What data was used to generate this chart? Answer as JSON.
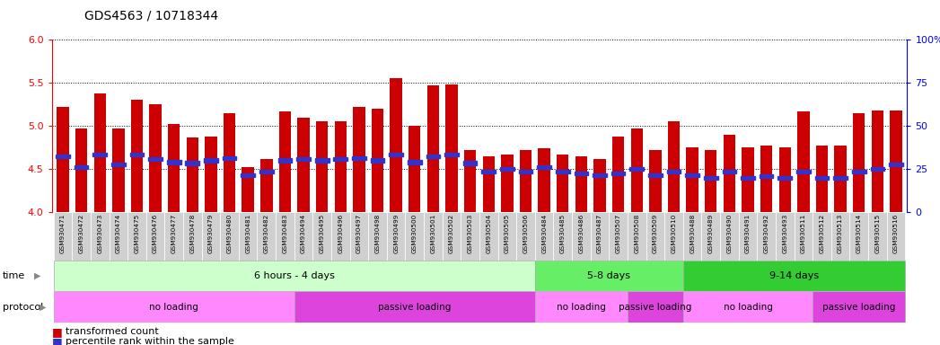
{
  "title": "GDS4563 / 10718344",
  "samples": [
    "GSM930471",
    "GSM930472",
    "GSM930473",
    "GSM930474",
    "GSM930475",
    "GSM930476",
    "GSM930477",
    "GSM930478",
    "GSM930479",
    "GSM930480",
    "GSM930481",
    "GSM930482",
    "GSM930483",
    "GSM930494",
    "GSM930495",
    "GSM930496",
    "GSM930497",
    "GSM930498",
    "GSM930499",
    "GSM930500",
    "GSM930501",
    "GSM930502",
    "GSM930503",
    "GSM930504",
    "GSM930505",
    "GSM930506",
    "GSM930484",
    "GSM930485",
    "GSM930486",
    "GSM930487",
    "GSM930507",
    "GSM930508",
    "GSM930509",
    "GSM930510",
    "GSM930488",
    "GSM930489",
    "GSM930490",
    "GSM930491",
    "GSM930492",
    "GSM930493",
    "GSM930511",
    "GSM930512",
    "GSM930513",
    "GSM930514",
    "GSM930515",
    "GSM930516"
  ],
  "bar_values": [
    5.22,
    4.97,
    5.38,
    4.97,
    5.3,
    5.25,
    5.02,
    4.87,
    4.88,
    5.15,
    4.52,
    4.62,
    5.17,
    5.1,
    5.05,
    5.05,
    5.22,
    5.2,
    5.55,
    5.0,
    5.47,
    5.48,
    4.72,
    4.65,
    4.67,
    4.72,
    4.74,
    4.67,
    4.65,
    4.62,
    4.88,
    4.97,
    4.72,
    5.05,
    4.75,
    4.72,
    4.9,
    4.75,
    4.77,
    4.75,
    5.17,
    4.77,
    4.77,
    5.15,
    5.18,
    5.18
  ],
  "percentile_values": [
    4.65,
    4.52,
    4.67,
    4.55,
    4.67,
    4.62,
    4.58,
    4.57,
    4.6,
    4.63,
    4.43,
    4.47,
    4.6,
    4.62,
    4.6,
    4.62,
    4.63,
    4.6,
    4.67,
    4.58,
    4.65,
    4.67,
    4.57,
    4.47,
    4.5,
    4.47,
    4.52,
    4.47,
    4.45,
    4.43,
    4.45,
    4.5,
    4.43,
    4.47,
    4.43,
    4.4,
    4.47,
    4.4,
    4.42,
    4.4,
    4.47,
    4.4,
    4.4,
    4.47,
    4.5,
    4.55
  ],
  "ylim_left": [
    4.0,
    6.0
  ],
  "yticks_left": [
    4.0,
    4.5,
    5.0,
    5.5,
    6.0
  ],
  "ylim_right": [
    0,
    100
  ],
  "yticks_right": [
    0,
    25,
    50,
    75,
    100
  ],
  "bar_color": "#cc0000",
  "marker_color": "#3333cc",
  "background_color": "#ffffff",
  "time_groups": [
    {
      "label": "6 hours - 4 days",
      "start": 0,
      "end": 26,
      "color": "#ccffcc"
    },
    {
      "label": "5-8 days",
      "start": 26,
      "end": 34,
      "color": "#66ee66"
    },
    {
      "label": "9-14 days",
      "start": 34,
      "end": 46,
      "color": "#33cc33"
    }
  ],
  "protocol_groups": [
    {
      "label": "no loading",
      "start": 0,
      "end": 13,
      "color": "#ff88ff"
    },
    {
      "label": "passive loading",
      "start": 13,
      "end": 26,
      "color": "#dd44dd"
    },
    {
      "label": "no loading",
      "start": 26,
      "end": 31,
      "color": "#ff88ff"
    },
    {
      "label": "passive loading",
      "start": 31,
      "end": 34,
      "color": "#dd44dd"
    },
    {
      "label": "no loading",
      "start": 34,
      "end": 41,
      "color": "#ff88ff"
    },
    {
      "label": "passive loading",
      "start": 41,
      "end": 46,
      "color": "#dd44dd"
    }
  ]
}
